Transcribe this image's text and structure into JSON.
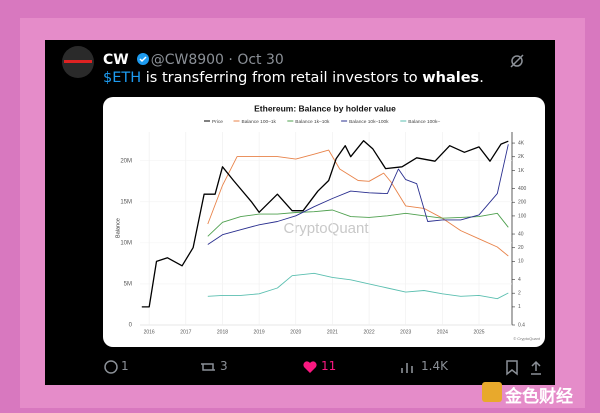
{
  "tweet": {
    "author": {
      "name": "CW",
      "handle": "@CW8900",
      "separator": "·",
      "date": "Oct 30"
    },
    "text": {
      "cashtag": "$ETH",
      "body": " is transferring from retail investors to ",
      "bold": "whales",
      "end": "."
    },
    "metrics": {
      "replies": 1,
      "retweets": 3,
      "likes": 11,
      "views": "1.4K"
    }
  },
  "chart_data": {
    "type": "line",
    "title": "Ethereum: Balance by holder value",
    "y_label": "Balance",
    "watermark": "CryptoQuant",
    "footer": "© CryptoQuant",
    "xlim": [
      2015.75,
      2025.9
    ],
    "xticks": [
      2016,
      2017,
      2018,
      2019,
      2020,
      2021,
      2022,
      2023,
      2024,
      2025
    ],
    "ylim": [
      0,
      23500000
    ],
    "yticks": [
      0,
      {
        "value": 5000000,
        "label": "5M"
      },
      {
        "value": 10000000,
        "label": "10M"
      },
      {
        "value": 15000000,
        "label": "15M"
      },
      {
        "value": 20000000,
        "label": "20M"
      }
    ],
    "y2lim": [
      0.4,
      7000
    ],
    "y2_log": true,
    "y2ticks": [
      0.4,
      1,
      2,
      4,
      10,
      20,
      40,
      100,
      200,
      400,
      {
        "value": 1000,
        "label": "1K"
      },
      {
        "value": 2000,
        "label": "2K"
      },
      {
        "value": 4000,
        "label": "4K"
      }
    ],
    "grid": true,
    "series": [
      {
        "name": "Price",
        "color": "#000000",
        "axis": "y2",
        "x": [
          2015.8,
          2016.0,
          2016.2,
          2016.5,
          2016.9,
          2017.2,
          2017.5,
          2017.8,
          2018.0,
          2018.3,
          2018.8,
          2019.0,
          2019.5,
          2019.9,
          2020.2,
          2020.6,
          2020.9,
          2021.1,
          2021.35,
          2021.5,
          2021.85,
          2022.1,
          2022.45,
          2022.9,
          2023.3,
          2023.8,
          2024.2,
          2024.6,
          2025.0,
          2025.3,
          2025.6,
          2025.8
        ],
        "values": [
          1,
          1,
          10,
          12,
          8,
          20,
          300,
          300,
          1200,
          600,
          200,
          120,
          300,
          130,
          130,
          350,
          600,
          1800,
          3500,
          2000,
          4500,
          3000,
          1100,
          1200,
          1900,
          1600,
          3500,
          2500,
          3300,
          1600,
          3800,
          4400
        ]
      },
      {
        "name": "Balance 100–1k",
        "color": "#e8834a",
        "x": [
          2017.6,
          2018.0,
          2018.4,
          2019.0,
          2019.5,
          2020.0,
          2020.5,
          2020.9,
          2021.2,
          2021.7,
          2022.0,
          2022.4,
          2022.6,
          2023.0,
          2023.5,
          2024.0,
          2024.5,
          2025.0,
          2025.5,
          2025.8
        ],
        "values": [
          12300000,
          17000000,
          20500000,
          20500000,
          20500000,
          20200000,
          20800000,
          21300000,
          19000000,
          17600000,
          17500000,
          18500000,
          17400000,
          14500000,
          14200000,
          13000000,
          11500000,
          10500000,
          9500000,
          8400000
        ]
      },
      {
        "name": "Balance 1k–10k",
        "color": "#4fa04f",
        "x": [
          2017.6,
          2018.0,
          2018.5,
          2019.0,
          2019.5,
          2020.0,
          2020.5,
          2021.0,
          2021.5,
          2022.0,
          2022.5,
          2023.0,
          2023.5,
          2024.0,
          2024.5,
          2025.0,
          2025.5,
          2025.8
        ],
        "values": [
          10800000,
          12500000,
          13200000,
          13500000,
          13500000,
          13700000,
          13800000,
          14000000,
          13200000,
          13100000,
          13300000,
          13600000,
          13300000,
          13000000,
          13100000,
          13200000,
          13600000,
          11900000
        ]
      },
      {
        "name": "Balance 10k–100k",
        "color": "#2a2f8f",
        "x": [
          2017.6,
          2018.0,
          2018.5,
          2019.0,
          2019.5,
          2020.0,
          2020.5,
          2021.0,
          2021.5,
          2022.0,
          2022.5,
          2022.8,
          2023.0,
          2023.3,
          2023.6,
          2024.0,
          2024.5,
          2025.0,
          2025.5,
          2025.8
        ],
        "values": [
          9800000,
          11000000,
          11600000,
          12200000,
          12600000,
          13300000,
          14400000,
          15400000,
          16300000,
          16100000,
          16000000,
          19000000,
          17700000,
          17200000,
          12600000,
          12800000,
          12800000,
          13400000,
          16000000,
          22000000
        ]
      },
      {
        "name": "Balance 100k–",
        "color": "#5bbfb0",
        "x": [
          2017.6,
          2018.0,
          2018.5,
          2019.0,
          2019.5,
          2019.9,
          2020.5,
          2021.0,
          2021.5,
          2022.0,
          2022.5,
          2023.0,
          2023.5,
          2024.0,
          2024.5,
          2025.0,
          2025.5,
          2025.8
        ],
        "values": [
          3500000,
          3600000,
          3600000,
          3800000,
          4500000,
          6000000,
          6300000,
          5800000,
          5500000,
          5000000,
          4500000,
          4000000,
          4200000,
          3800000,
          3500000,
          3600000,
          3200000,
          3900000
        ]
      }
    ]
  },
  "watermark": "金色财经"
}
